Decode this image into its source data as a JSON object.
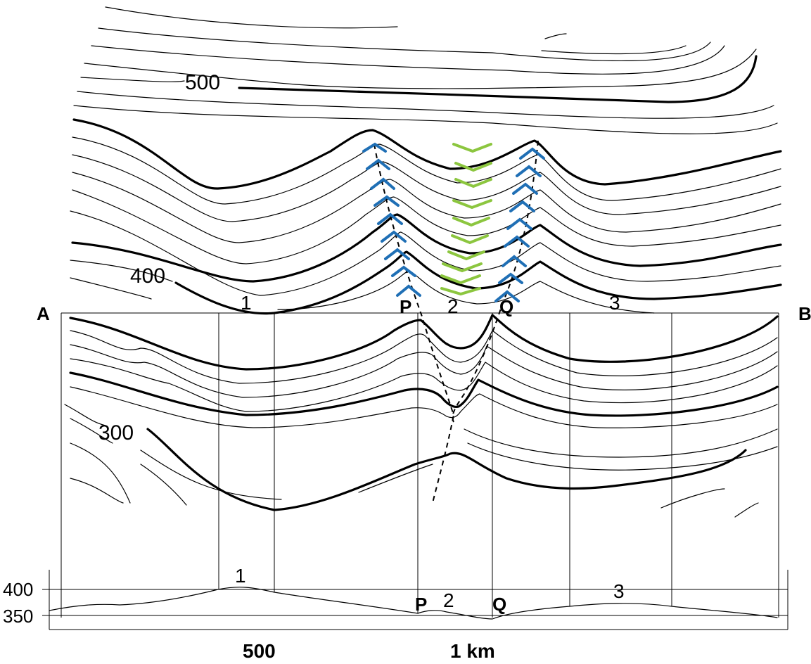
{
  "map": {
    "section_ends": {
      "left": "A",
      "right": "B"
    },
    "contour_labels": [
      "500",
      "400",
      "300"
    ],
    "section_points": [
      "1",
      "P",
      "2",
      "Q",
      "3"
    ],
    "profile": {
      "elevation_labels": [
        "400",
        "350"
      ],
      "distance_labels": [
        "500",
        "1 km"
      ],
      "point_labels": [
        "1",
        "P",
        "2",
        "Q",
        "3"
      ]
    },
    "colors": {
      "contours": "#000000",
      "chevrons_blue": "#1f6fb5",
      "chevrons_green": "#8cc63f"
    }
  }
}
